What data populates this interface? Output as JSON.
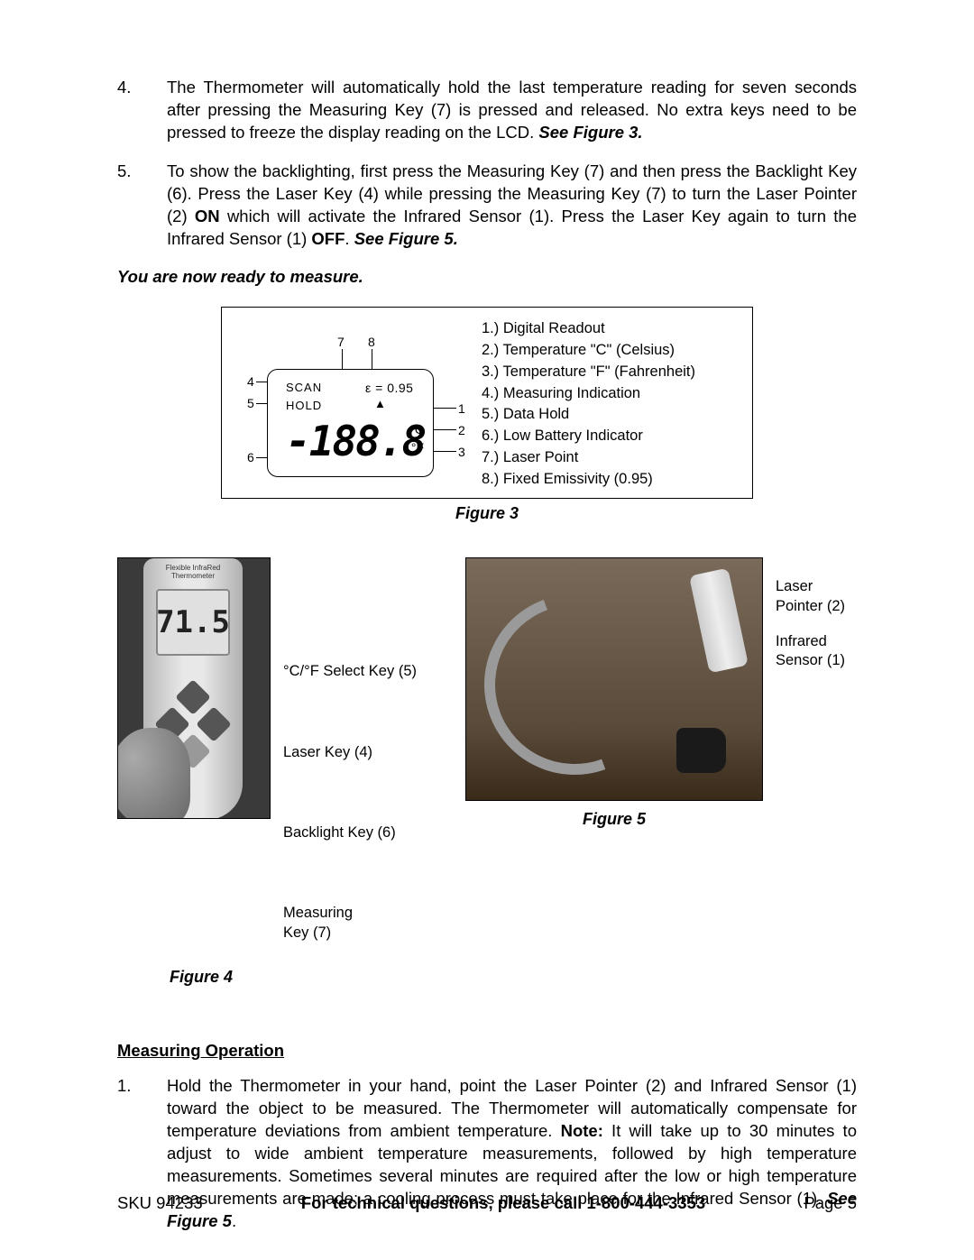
{
  "steps_top": [
    {
      "num": "4.",
      "html": "The Thermometer will automatically hold the last temperature reading for seven seconds after pressing the Measuring Key (7) is pressed and released. No extra keys need to be pressed to freeze the display reading on the LCD. <b><i>See Figure 3.</i></b>"
    },
    {
      "num": "5.",
      "html": "To show the backlighting, first press the Measuring Key (7) and then press the Backlight Key (6). Press the Laser Key (4) while pressing the Measuring Key (7) to turn the Laser Pointer (2) <b>ON</b> which will activate the Infrared Sensor (1). Press the Laser Key again to turn the Infrared Sensor (1) <b>OFF</b>. <b><i>See Figure 5.</i></b>"
    }
  ],
  "ready_line": "You are now ready to measure.",
  "figure3": {
    "lcd": {
      "scan": "SCAN",
      "hold": "HOLD",
      "epsilon": "ε  = 0.95",
      "digits": "-188.8",
      "c": "°C",
      "f": "°F"
    },
    "callouts": [
      "1",
      "2",
      "3",
      "4",
      "5",
      "6",
      "7",
      "8"
    ],
    "legend": [
      "1.) Digital Readout",
      "2.) Temperature \"C\" (Celsius)",
      "3.) Temperature \"F\" (Fahrenheit)",
      "4.) Measuring Indication",
      "5.) Data Hold",
      "6.) Low Battery Indicator",
      "7.) Laser Point",
      "8.) Fixed Emissivity (0.95)"
    ],
    "caption": "Figure 3"
  },
  "figure4": {
    "photo_title": "Flexible InfraRed Thermometer",
    "screen": "71.5",
    "labels": [
      "°C/°F Select Key (5)",
      "Laser Key (4)",
      "Backlight Key (6)",
      "Measuring Key (7)"
    ],
    "caption": "Figure 4"
  },
  "figure5": {
    "labels": [
      "Laser Pointer (2)",
      "Infrared Sensor (1)"
    ],
    "caption": "Figure 5"
  },
  "section_heading": "Measuring Operation",
  "steps_bottom": [
    {
      "num": "1.",
      "html": "Hold the Thermometer in your hand, point the Laser Pointer (2) and Infrared Sensor (1) toward the object to be measured. The Thermometer will automatically compensate for temperature deviations from ambient temperature. <b>Note:</b> It will take up to 30 minutes to adjust to wide ambient temperature measurements, followed by high temperature measurements. Sometimes several minutes are required after the low or high temperature measurements are made;  a cooling process must take place for the Infrared Sensor (1).  <b><i>See Figure 5</i></b>."
    }
  ],
  "footer": {
    "left": "SKU 94233",
    "mid": "For technical questions, please call 1-800-444-3353",
    "right": "Page 5"
  },
  "colors": {
    "text": "#000000",
    "bg": "#ffffff",
    "photo_bg_dark": "#3a3a3a",
    "wood": "#5a4a3a"
  }
}
